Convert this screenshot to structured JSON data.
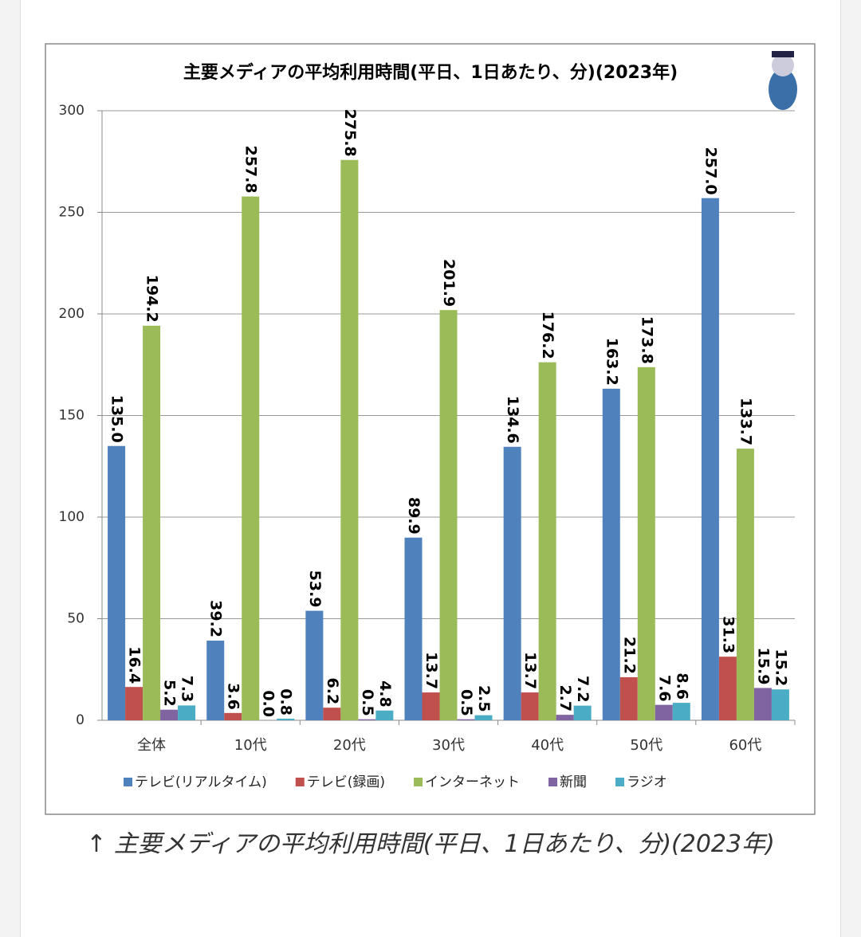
{
  "chart_data": {
    "type": "bar",
    "title": "主要メディアの平均利用時間(平日、1日あたり、分)(2023年)",
    "categories": [
      "全体",
      "10代",
      "20代",
      "30代",
      "40代",
      "50代",
      "60代"
    ],
    "series": [
      {
        "name": "テレビ(リアルタイム)",
        "color": "#4f81bd",
        "values": [
          135.0,
          39.2,
          53.9,
          89.9,
          134.6,
          163.2,
          257.0
        ],
        "value_labels": [
          "135.0",
          "39.2",
          "53.9",
          "89.9",
          "134.6",
          "163.2",
          "257.0"
        ]
      },
      {
        "name": "テレビ(録画)",
        "color": "#c0504d",
        "values": [
          16.4,
          3.6,
          6.2,
          13.7,
          13.7,
          21.2,
          31.3
        ],
        "value_labels": [
          "16.4",
          "3.6",
          "6.2",
          "13.7",
          "13.7",
          "21.2",
          "31.3"
        ]
      },
      {
        "name": "インターネット",
        "color": "#9bbb59",
        "values": [
          194.2,
          257.8,
          275.8,
          201.9,
          176.2,
          173.8,
          133.7
        ],
        "value_labels": [
          "194.2",
          "257.8",
          "275.8",
          "201.9",
          "176.2",
          "173.8",
          "133.7"
        ]
      },
      {
        "name": "新聞",
        "color": "#8064a2",
        "values": [
          5.2,
          0.0,
          0.5,
          0.5,
          2.7,
          7.6,
          15.9
        ],
        "value_labels": [
          "5.2",
          "0.0",
          "0.5",
          "0.5",
          "2.7",
          "7.6",
          "15.9"
        ]
      },
      {
        "name": "ラジオ",
        "color": "#4bacc6",
        "values": [
          7.3,
          0.8,
          4.8,
          2.5,
          7.2,
          8.6,
          15.2
        ],
        "value_labels": [
          "7.3",
          "0.8",
          "4.8",
          "2.5",
          "7.2",
          "8.6",
          "15.2"
        ]
      }
    ],
    "ylim": [
      0,
      300
    ],
    "yticks": [
      0,
      50,
      100,
      150,
      200,
      250,
      300
    ],
    "grid": true,
    "caption": "↑ 主要メディアの平均利用時間(平日、1日あたり、分)(2023年)"
  }
}
